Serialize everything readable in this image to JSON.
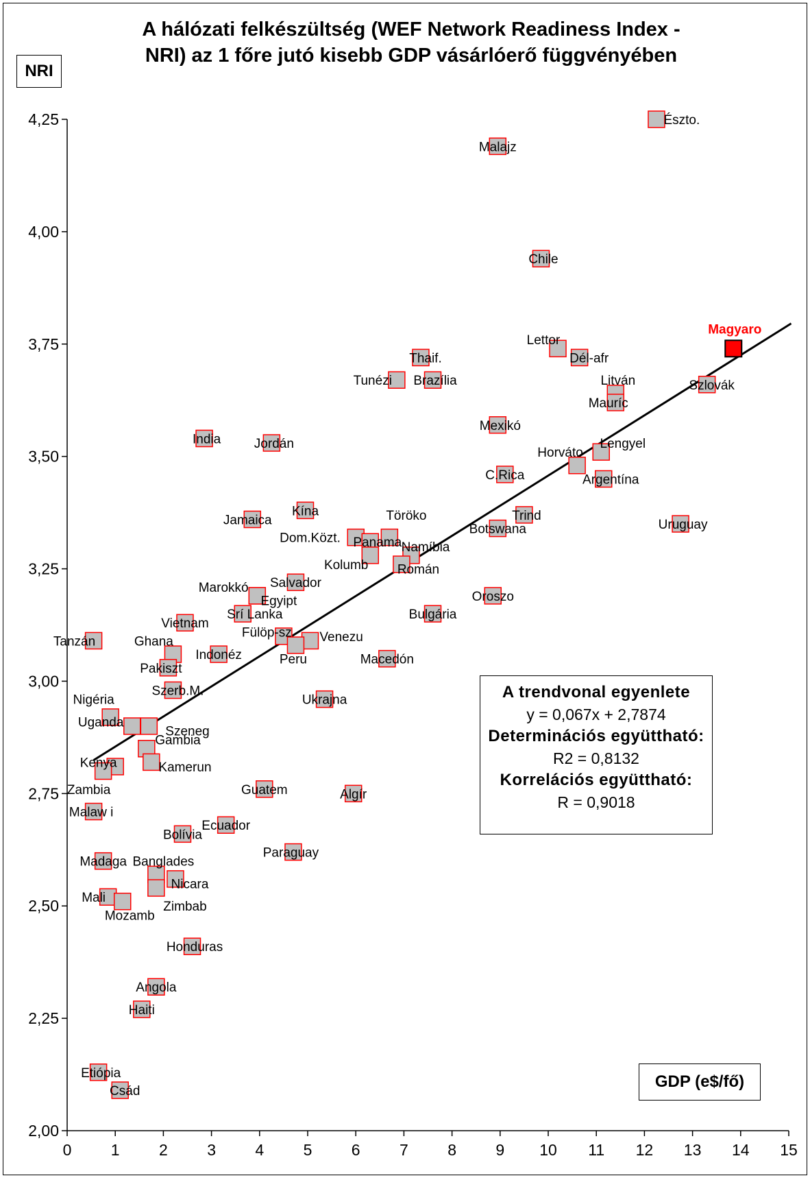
{
  "chart_data": {
    "type": "scatter",
    "title_lines": [
      "A hálózati felkészültség (WEF Network Readiness Index -",
      "NRI) az 1 főre jutó kisebb GDP vásárlóerő  függvényében"
    ],
    "ylabel": "NRI",
    "xlabel": "GDP (e$/fő)",
    "xlim": [
      0,
      15
    ],
    "ylim": [
      2.0,
      4.25
    ],
    "x_ticks": [
      0,
      1,
      2,
      3,
      4,
      5,
      6,
      7,
      8,
      9,
      10,
      11,
      12,
      13,
      14,
      15
    ],
    "y_ticks": [
      2.0,
      2.25,
      2.5,
      2.75,
      3.0,
      3.25,
      3.5,
      3.75,
      4.25
    ],
    "y_tick_labels": [
      "2,00",
      "2,25",
      "2,50",
      "2,75",
      "3,00",
      "3,25",
      "3,50",
      "3,75",
      "4,00",
      "4,25"
    ],
    "y_tick_values": [
      2.0,
      2.25,
      2.5,
      2.75,
      3.0,
      3.25,
      3.5,
      3.75,
      4.0,
      4.25
    ],
    "marker_fill": "#c0c0c0",
    "marker_stroke": "#ff0000",
    "highlight_fill": "#ff0000",
    "trendline": {
      "slope": 0.067,
      "intercept": 2.7874,
      "x_range": [
        0.55,
        15.05
      ]
    },
    "trend_box": {
      "heading": "A trendvonal egyenlete",
      "equation": "y = 0,067x + 2,7874",
      "det_label": "Determinációs együttható:",
      "det_value": "R2 = 0,8132",
      "corr_label": "Korrelációs együttható:",
      "corr_value": "R = 0,9018"
    },
    "points": [
      {
        "label": "Észto.",
        "x": 12.25,
        "y": 4.25,
        "lx": 0.15,
        "ly": 0.0,
        "anchor": "start"
      },
      {
        "label": "Malajz",
        "x": 8.95,
        "y": 4.19,
        "lx": 0.0,
        "ly": 0.0,
        "anchor": "middle"
      },
      {
        "label": "Chile",
        "x": 9.85,
        "y": 3.94,
        "lx": 0.05,
        "ly": 0.0,
        "anchor": "middle"
      },
      {
        "label": "Lettor",
        "x": 10.2,
        "y": 3.74,
        "lx": -0.3,
        "ly": 0.02,
        "anchor": "middle"
      },
      {
        "label": "Dél-afr",
        "x": 10.65,
        "y": 3.72,
        "lx": 0.2,
        "ly": 0.0,
        "anchor": "middle"
      },
      {
        "label": "Thaif.",
        "x": 7.35,
        "y": 3.72,
        "lx": 0.1,
        "ly": 0.0,
        "anchor": "middle"
      },
      {
        "label": "Tunézi",
        "x": 6.85,
        "y": 3.67,
        "lx": -0.5,
        "ly": 0.0,
        "anchor": "middle"
      },
      {
        "label": "Brazília",
        "x": 7.6,
        "y": 3.67,
        "lx": 0.05,
        "ly": 0.0,
        "anchor": "middle"
      },
      {
        "label": "Szlovák",
        "x": 13.3,
        "y": 3.66,
        "lx": 0.1,
        "ly": 0.0,
        "anchor": "middle"
      },
      {
        "label": "Litván",
        "x": 11.4,
        "y": 3.64,
        "lx": 0.05,
        "ly": 0.03,
        "anchor": "middle"
      },
      {
        "label": "Mauríc",
        "x": 11.4,
        "y": 3.62,
        "lx": -0.15,
        "ly": 0.0,
        "anchor": "middle"
      },
      {
        "label": "Mexikó",
        "x": 8.95,
        "y": 3.57,
        "lx": 0.05,
        "ly": 0.0,
        "anchor": "middle"
      },
      {
        "label": "India",
        "x": 2.85,
        "y": 3.54,
        "lx": 0.05,
        "ly": 0.0,
        "anchor": "middle"
      },
      {
        "label": "Jordán",
        "x": 4.25,
        "y": 3.53,
        "lx": 0.05,
        "ly": 0.0,
        "anchor": "middle"
      },
      {
        "label": "Lengyel",
        "x": 11.1,
        "y": 3.51,
        "lx": 0.45,
        "ly": 0.02,
        "anchor": "middle"
      },
      {
        "label": "Horváto",
        "x": 10.6,
        "y": 3.48,
        "lx": -0.35,
        "ly": 0.03,
        "anchor": "middle"
      },
      {
        "label": "C.Rica",
        "x": 9.1,
        "y": 3.46,
        "lx": 0.0,
        "ly": 0.0,
        "anchor": "middle"
      },
      {
        "label": "Argentína",
        "x": 11.15,
        "y": 3.45,
        "lx": 0.15,
        "ly": 0.0,
        "anchor": "middle"
      },
      {
        "label": "Kína",
        "x": 4.95,
        "y": 3.38,
        "lx": 0.0,
        "ly": 0.0,
        "anchor": "middle"
      },
      {
        "label": "Trind",
        "x": 9.5,
        "y": 3.37,
        "lx": 0.05,
        "ly": 0.0,
        "anchor": "middle"
      },
      {
        "label": "Jamaica",
        "x": 3.85,
        "y": 3.36,
        "lx": -0.1,
        "ly": 0.0,
        "anchor": "middle"
      },
      {
        "label": "Uruguay",
        "x": 12.75,
        "y": 3.35,
        "lx": 0.05,
        "ly": 0.0,
        "anchor": "middle"
      },
      {
        "label": "Botswana",
        "x": 8.95,
        "y": 3.34,
        "lx": 0.0,
        "ly": 0.0,
        "anchor": "middle"
      },
      {
        "label": "Töröko",
        "x": 6.7,
        "y": 3.32,
        "lx": 0.35,
        "ly": 0.05,
        "anchor": "middle"
      },
      {
        "label": "Dom.Közt.",
        "x": 6.0,
        "y": 3.32,
        "lx": -0.95,
        "ly": 0.0,
        "anchor": "middle"
      },
      {
        "label": "Panama",
        "x": 6.3,
        "y": 3.31,
        "lx": 0.15,
        "ly": 0.0,
        "anchor": "middle"
      },
      {
        "label": "Namíbia",
        "x": 7.15,
        "y": 3.28,
        "lx": 0.3,
        "ly": 0.02,
        "anchor": "middle"
      },
      {
        "label": "Kolumb",
        "x": 6.3,
        "y": 3.28,
        "lx": -0.5,
        "ly": -0.02,
        "anchor": "middle"
      },
      {
        "label": "Román",
        "x": 6.95,
        "y": 3.26,
        "lx": 0.35,
        "ly": -0.01,
        "anchor": "middle"
      },
      {
        "label": "Salvador",
        "x": 4.75,
        "y": 3.22,
        "lx": 0.0,
        "ly": 0.0,
        "anchor": "middle"
      },
      {
        "label": "Marokkó",
        "x": 3.95,
        "y": 3.19,
        "lx": -0.7,
        "ly": 0.02,
        "anchor": "middle"
      },
      {
        "label": "Egyipt",
        "x": 3.95,
        "y": 3.19,
        "lx": 0.45,
        "ly": -0.01,
        "anchor": "middle"
      },
      {
        "label": "Oroszo",
        "x": 8.85,
        "y": 3.19,
        "lx": 0.0,
        "ly": 0.0,
        "anchor": "middle"
      },
      {
        "label": "Srí Lanka",
        "x": 3.65,
        "y": 3.15,
        "lx": 0.25,
        "ly": 0.0,
        "anchor": "middle"
      },
      {
        "label": "Bulgária",
        "x": 7.6,
        "y": 3.15,
        "lx": 0.0,
        "ly": 0.0,
        "anchor": "middle"
      },
      {
        "label": "Vietnam",
        "x": 2.45,
        "y": 3.13,
        "lx": 0.0,
        "ly": 0.0,
        "anchor": "middle"
      },
      {
        "label": "Fülöp-sz",
        "x": 4.5,
        "y": 3.1,
        "lx": -0.35,
        "ly": 0.01,
        "anchor": "middle"
      },
      {
        "label": "Tanzán",
        "x": 0.55,
        "y": 3.09,
        "lx": -0.4,
        "ly": 0.0,
        "anchor": "middle"
      },
      {
        "label": "Venezu",
        "x": 5.05,
        "y": 3.09,
        "lx": 0.65,
        "ly": 0.01,
        "anchor": "middle"
      },
      {
        "label": "Peru",
        "x": 4.75,
        "y": 3.08,
        "lx": -0.05,
        "ly": -0.03,
        "anchor": "middle"
      },
      {
        "label": "Indonéz",
        "x": 3.15,
        "y": 3.06,
        "lx": 0.0,
        "ly": 0.0,
        "anchor": "middle"
      },
      {
        "label": "Ghana",
        "x": 2.2,
        "y": 3.06,
        "lx": -0.4,
        "ly": 0.03,
        "anchor": "middle"
      },
      {
        "label": "Macedón",
        "x": 6.65,
        "y": 3.05,
        "lx": 0.0,
        "ly": 0.0,
        "anchor": "middle"
      },
      {
        "label": "Pakiszt",
        "x": 2.1,
        "y": 3.03,
        "lx": -0.15,
        "ly": 0.0,
        "anchor": "middle"
      },
      {
        "label": "Szerb.M.",
        "x": 2.2,
        "y": 2.98,
        "lx": 0.1,
        "ly": 0.0,
        "anchor": "middle"
      },
      {
        "label": "Ukrajna",
        "x": 5.35,
        "y": 2.96,
        "lx": 0.0,
        "ly": 0.0,
        "anchor": "middle"
      },
      {
        "label": "Nigéria",
        "x": 0.9,
        "y": 2.92,
        "lx": -0.35,
        "ly": 0.04,
        "anchor": "middle"
      },
      {
        "label": "Uganda",
        "x": 1.35,
        "y": 2.9,
        "lx": -0.65,
        "ly": 0.01,
        "anchor": "middle"
      },
      {
        "label": "Szeneg",
        "x": 1.7,
        "y": 2.9,
        "lx": 0.8,
        "ly": -0.01,
        "anchor": "middle"
      },
      {
        "label": "Gambia",
        "x": 1.65,
        "y": 2.85,
        "lx": 0.65,
        "ly": 0.02,
        "anchor": "middle"
      },
      {
        "label": "Kamerun",
        "x": 1.75,
        "y": 2.82,
        "lx": 0.7,
        "ly": -0.01,
        "anchor": "middle"
      },
      {
        "label": "Kenya",
        "x": 1.0,
        "y": 2.81,
        "lx": -0.35,
        "ly": 0.01,
        "anchor": "middle"
      },
      {
        "label": "Zambia",
        "x": 0.75,
        "y": 2.8,
        "lx": -0.3,
        "ly": -0.04,
        "anchor": "middle"
      },
      {
        "label": "Guatem",
        "x": 4.1,
        "y": 2.76,
        "lx": 0.0,
        "ly": 0.0,
        "anchor": "middle"
      },
      {
        "label": "Algír",
        "x": 5.95,
        "y": 2.75,
        "lx": 0.0,
        "ly": 0.0,
        "anchor": "middle"
      },
      {
        "label": "Malaw i",
        "x": 0.55,
        "y": 2.71,
        "lx": -0.05,
        "ly": 0.0,
        "anchor": "middle"
      },
      {
        "label": "Ecuador",
        "x": 3.3,
        "y": 2.68,
        "lx": 0.0,
        "ly": 0.0,
        "anchor": "middle"
      },
      {
        "label": "Bolívia",
        "x": 2.4,
        "y": 2.66,
        "lx": 0.0,
        "ly": 0.0,
        "anchor": "middle"
      },
      {
        "label": "Paraguay",
        "x": 4.7,
        "y": 2.62,
        "lx": -0.05,
        "ly": 0.0,
        "anchor": "middle"
      },
      {
        "label": "Madaga",
        "x": 0.75,
        "y": 2.6,
        "lx": 0.0,
        "ly": 0.0,
        "anchor": "middle"
      },
      {
        "label": "Banglades",
        "x": 1.85,
        "y": 2.57,
        "lx": 0.15,
        "ly": 0.03,
        "anchor": "middle"
      },
      {
        "label": "Nicara",
        "x": 2.25,
        "y": 2.56,
        "lx": 0.3,
        "ly": -0.01,
        "anchor": "middle"
      },
      {
        "label": "Zimbab",
        "x": 1.85,
        "y": 2.54,
        "lx": 0.6,
        "ly": -0.04,
        "anchor": "middle"
      },
      {
        "label": "Mali",
        "x": 0.85,
        "y": 2.52,
        "lx": -0.3,
        "ly": 0.0,
        "anchor": "middle"
      },
      {
        "label": "Mozamb",
        "x": 1.15,
        "y": 2.51,
        "lx": 0.15,
        "ly": -0.03,
        "anchor": "middle"
      },
      {
        "label": "Honduras",
        "x": 2.6,
        "y": 2.41,
        "lx": 0.05,
        "ly": 0.0,
        "anchor": "middle"
      },
      {
        "label": "Angola",
        "x": 1.85,
        "y": 2.32,
        "lx": 0.0,
        "ly": 0.0,
        "anchor": "middle"
      },
      {
        "label": "Haiti",
        "x": 1.55,
        "y": 2.27,
        "lx": 0.0,
        "ly": 0.0,
        "anchor": "middle"
      },
      {
        "label": "Etiópia",
        "x": 0.65,
        "y": 2.13,
        "lx": 0.05,
        "ly": 0.0,
        "anchor": "middle"
      },
      {
        "label": "Csád",
        "x": 1.1,
        "y": 2.09,
        "lx": 0.1,
        "ly": 0.0,
        "anchor": "middle"
      }
    ],
    "highlight": {
      "label": "Magyaro",
      "x": 13.85,
      "y": 3.74
    }
  }
}
